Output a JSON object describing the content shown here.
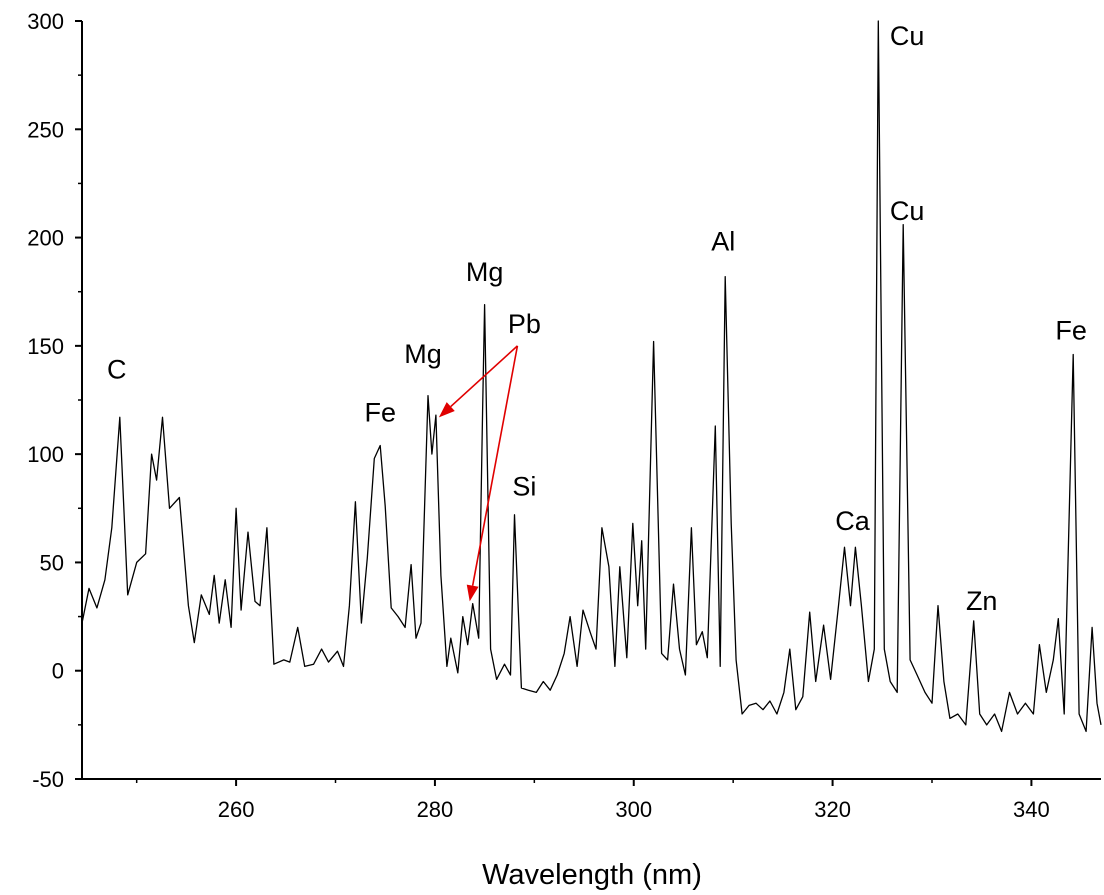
{
  "chart_data": {
    "type": "line",
    "title": "",
    "xlabel": "Wavelength (nm)",
    "ylabel": "",
    "xlim": [
      244.5,
      347.0
    ],
    "ylim": [
      -50,
      300
    ],
    "x_ticks": [
      260,
      280,
      300,
      320,
      340
    ],
    "y_ticks": [
      -50,
      0,
      50,
      100,
      150,
      200,
      250,
      300
    ],
    "x_tick_labels": [
      "260",
      "280",
      "300",
      "320",
      "340"
    ],
    "y_tick_labels": [
      "-50",
      "0",
      "50",
      "100",
      "150",
      "200",
      "250",
      "300"
    ],
    "grid": false,
    "line_color": "#000000",
    "annotation_color": "#e00000",
    "series": [
      {
        "values": [
          [
            244.5,
            22
          ],
          [
            245.2,
            38
          ],
          [
            246.0,
            29
          ],
          [
            246.8,
            42
          ],
          [
            247.5,
            66
          ],
          [
            248.3,
            117
          ],
          [
            249.1,
            35
          ],
          [
            250.0,
            50
          ],
          [
            250.9,
            54
          ],
          [
            251.5,
            100
          ],
          [
            252.0,
            88
          ],
          [
            252.6,
            117
          ],
          [
            253.3,
            75
          ],
          [
            254.3,
            80
          ],
          [
            255.2,
            30
          ],
          [
            255.8,
            13
          ],
          [
            256.5,
            35
          ],
          [
            257.3,
            26
          ],
          [
            257.8,
            44
          ],
          [
            258.3,
            22
          ],
          [
            258.9,
            42
          ],
          [
            259.5,
            20
          ],
          [
            260.0,
            75
          ],
          [
            260.5,
            28
          ],
          [
            261.2,
            64
          ],
          [
            261.9,
            32
          ],
          [
            262.4,
            30
          ],
          [
            263.1,
            66
          ],
          [
            263.8,
            3
          ],
          [
            264.8,
            5
          ],
          [
            265.4,
            4
          ],
          [
            266.2,
            20
          ],
          [
            266.9,
            2
          ],
          [
            267.8,
            3
          ],
          [
            268.6,
            10
          ],
          [
            269.3,
            4
          ],
          [
            270.2,
            9
          ],
          [
            270.8,
            2
          ],
          [
            271.4,
            30
          ],
          [
            272.0,
            78
          ],
          [
            272.6,
            22
          ],
          [
            273.2,
            52
          ],
          [
            273.9,
            98
          ],
          [
            274.5,
            104
          ],
          [
            275.0,
            76
          ],
          [
            275.6,
            29
          ],
          [
            276.3,
            25
          ],
          [
            277.0,
            20
          ],
          [
            277.6,
            49
          ],
          [
            278.1,
            15
          ],
          [
            278.6,
            22
          ],
          [
            279.3,
            127
          ],
          [
            279.7,
            100
          ],
          [
            280.1,
            118
          ],
          [
            280.6,
            44
          ],
          [
            281.2,
            2
          ],
          [
            281.6,
            15
          ],
          [
            282.3,
            -1
          ],
          [
            282.8,
            25
          ],
          [
            283.3,
            12
          ],
          [
            283.8,
            31
          ],
          [
            284.4,
            15
          ],
          [
            284.8,
            120
          ],
          [
            285.0,
            169
          ],
          [
            285.6,
            10
          ],
          [
            286.2,
            -4
          ],
          [
            287.0,
            3
          ],
          [
            287.6,
            -2
          ],
          [
            288.0,
            72
          ],
          [
            288.7,
            -8
          ],
          [
            289.4,
            -9
          ],
          [
            290.2,
            -10
          ],
          [
            290.9,
            -5
          ],
          [
            291.6,
            -9
          ],
          [
            292.3,
            -2
          ],
          [
            293.0,
            8
          ],
          [
            293.6,
            25
          ],
          [
            294.3,
            2
          ],
          [
            294.9,
            28
          ],
          [
            295.6,
            18
          ],
          [
            296.2,
            10
          ],
          [
            296.8,
            66
          ],
          [
            297.5,
            48
          ],
          [
            298.1,
            2
          ],
          [
            298.6,
            48
          ],
          [
            299.3,
            6
          ],
          [
            299.9,
            68
          ],
          [
            300.4,
            30
          ],
          [
            300.8,
            60
          ],
          [
            301.2,
            10
          ],
          [
            302.0,
            152
          ],
          [
            302.8,
            8
          ],
          [
            303.4,
            5
          ],
          [
            304.0,
            40
          ],
          [
            304.6,
            10
          ],
          [
            305.2,
            -2
          ],
          [
            305.8,
            66
          ],
          [
            306.3,
            12
          ],
          [
            306.9,
            18
          ],
          [
            307.4,
            6
          ],
          [
            308.2,
            113
          ],
          [
            308.7,
            2
          ],
          [
            309.2,
            182
          ],
          [
            309.8,
            68
          ],
          [
            310.3,
            5
          ],
          [
            310.9,
            -20
          ],
          [
            311.6,
            -16
          ],
          [
            312.3,
            -15
          ],
          [
            313.0,
            -18
          ],
          [
            313.7,
            -14
          ],
          [
            314.4,
            -20
          ],
          [
            315.1,
            -10
          ],
          [
            315.7,
            10
          ],
          [
            316.3,
            -18
          ],
          [
            317.0,
            -12
          ],
          [
            317.7,
            27
          ],
          [
            318.3,
            -5
          ],
          [
            319.1,
            21
          ],
          [
            319.8,
            -4
          ],
          [
            320.6,
            30
          ],
          [
            321.2,
            57
          ],
          [
            321.8,
            30
          ],
          [
            322.3,
            57
          ],
          [
            322.9,
            30
          ],
          [
            323.6,
            -5
          ],
          [
            324.2,
            10
          ],
          [
            324.6,
            300
          ],
          [
            325.2,
            10
          ],
          [
            325.8,
            -5
          ],
          [
            326.5,
            -10
          ],
          [
            327.1,
            206
          ],
          [
            327.8,
            5
          ],
          [
            328.5,
            -2
          ],
          [
            329.3,
            -10
          ],
          [
            330.0,
            -15
          ],
          [
            330.6,
            30
          ],
          [
            331.2,
            -5
          ],
          [
            331.8,
            -22
          ],
          [
            332.6,
            -20
          ],
          [
            333.4,
            -25
          ],
          [
            334.2,
            23
          ],
          [
            334.8,
            -20
          ],
          [
            335.5,
            -25
          ],
          [
            336.3,
            -20
          ],
          [
            337.0,
            -28
          ],
          [
            337.8,
            -10
          ],
          [
            338.6,
            -20
          ],
          [
            339.4,
            -15
          ],
          [
            340.2,
            -20
          ],
          [
            340.8,
            12
          ],
          [
            341.5,
            -10
          ],
          [
            342.2,
            5
          ],
          [
            342.7,
            24
          ],
          [
            343.3,
            -20
          ],
          [
            344.2,
            146
          ],
          [
            344.8,
            -20
          ],
          [
            345.5,
            -28
          ],
          [
            346.1,
            20
          ],
          [
            346.6,
            -15
          ],
          [
            347.0,
            -25
          ]
        ]
      }
    ],
    "annotations": [
      {
        "text": "C",
        "x": 248.0,
        "y": 135
      },
      {
        "text": "Fe",
        "x": 274.5,
        "y": 115
      },
      {
        "text": "Mg",
        "x": 278.8,
        "y": 142
      },
      {
        "text": "Mg",
        "x": 285.0,
        "y": 180
      },
      {
        "text": "Pb",
        "x": 289.0,
        "y": 156
      },
      {
        "text": "Si",
        "x": 289.0,
        "y": 81
      },
      {
        "text": "Al",
        "x": 309.0,
        "y": 194
      },
      {
        "text": "Cu",
        "x": 327.5,
        "y": 289
      },
      {
        "text": "Cu",
        "x": 327.5,
        "y": 208
      },
      {
        "text": "Ca",
        "x": 322.0,
        "y": 65
      },
      {
        "text": "Zn",
        "x": 335.0,
        "y": 28
      },
      {
        "text": "Fe",
        "x": 344.0,
        "y": 153
      }
    ],
    "arrows": [
      {
        "from": [
          288.3,
          150
        ],
        "to": [
          280.4,
          117
        ]
      },
      {
        "from": [
          288.3,
          150
        ],
        "to": [
          283.5,
          32
        ]
      }
    ]
  }
}
